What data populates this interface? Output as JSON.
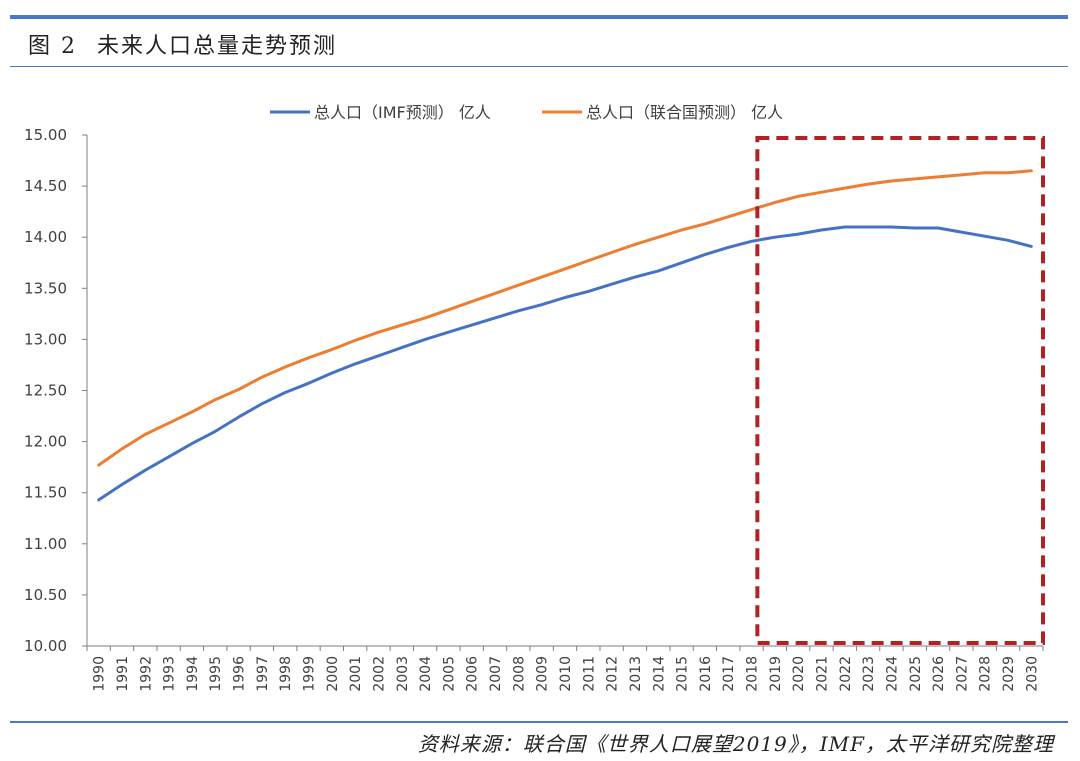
{
  "header": {
    "figure_label": "图 2",
    "title": "未来人口总量走势预测"
  },
  "source": "资料来源：联合国《世界人口展望2019》，IMF，太平洋研究院整理",
  "colors": {
    "imf": "#4472c4",
    "un": "#ed7d31",
    "highlight": "#b22222",
    "rule": "#4a78c9"
  },
  "chart_data": {
    "type": "line",
    "title": "",
    "xlabel": "",
    "ylabel": "",
    "ylim": [
      10.0,
      15.0
    ],
    "yticks": [
      "10.00",
      "10.50",
      "11.00",
      "11.50",
      "12.00",
      "12.50",
      "13.00",
      "13.50",
      "14.00",
      "14.50",
      "15.00"
    ],
    "grid": false,
    "legend_position": "top",
    "x": [
      "1990",
      "1991",
      "1992",
      "1993",
      "1994",
      "1995",
      "1996",
      "1997",
      "1998",
      "1999",
      "2000",
      "2001",
      "2002",
      "2003",
      "2004",
      "2005",
      "2006",
      "2007",
      "2008",
      "2009",
      "2010",
      "2011",
      "2012",
      "2013",
      "2014",
      "2015",
      "2016",
      "2017",
      "2018",
      "2019",
      "2020",
      "2021",
      "2022",
      "2023",
      "2024",
      "2025",
      "2026",
      "2027",
      "2028",
      "2029",
      "2030"
    ],
    "series": [
      {
        "name": "总人口（IMF预测） 亿人",
        "color_key": "imf",
        "values": [
          11.43,
          11.58,
          11.72,
          11.85,
          11.98,
          12.1,
          12.24,
          12.37,
          12.48,
          12.57,
          12.67,
          12.76,
          12.84,
          12.92,
          13.0,
          13.07,
          13.14,
          13.21,
          13.28,
          13.34,
          13.41,
          13.47,
          13.54,
          13.61,
          13.67,
          13.75,
          13.83,
          13.9,
          13.96,
          14.0,
          14.03,
          14.07,
          14.1,
          14.1,
          14.1,
          14.09,
          14.09,
          14.05,
          14.01,
          13.97,
          13.91
        ]
      },
      {
        "name": "总人口（联合国预测） 亿人",
        "color_key": "un",
        "values": [
          11.77,
          11.93,
          12.07,
          12.18,
          12.29,
          12.41,
          12.51,
          12.63,
          12.73,
          12.82,
          12.9,
          12.99,
          13.07,
          13.14,
          13.21,
          13.29,
          13.37,
          13.45,
          13.53,
          13.61,
          13.69,
          13.77,
          13.85,
          13.93,
          14.0,
          14.07,
          14.13,
          14.2,
          14.27,
          14.34,
          14.4,
          14.44,
          14.48,
          14.52,
          14.55,
          14.57,
          14.59,
          14.61,
          14.63,
          14.63,
          14.65
        ]
      }
    ],
    "highlight_range": [
      "2019",
      "2030"
    ]
  }
}
